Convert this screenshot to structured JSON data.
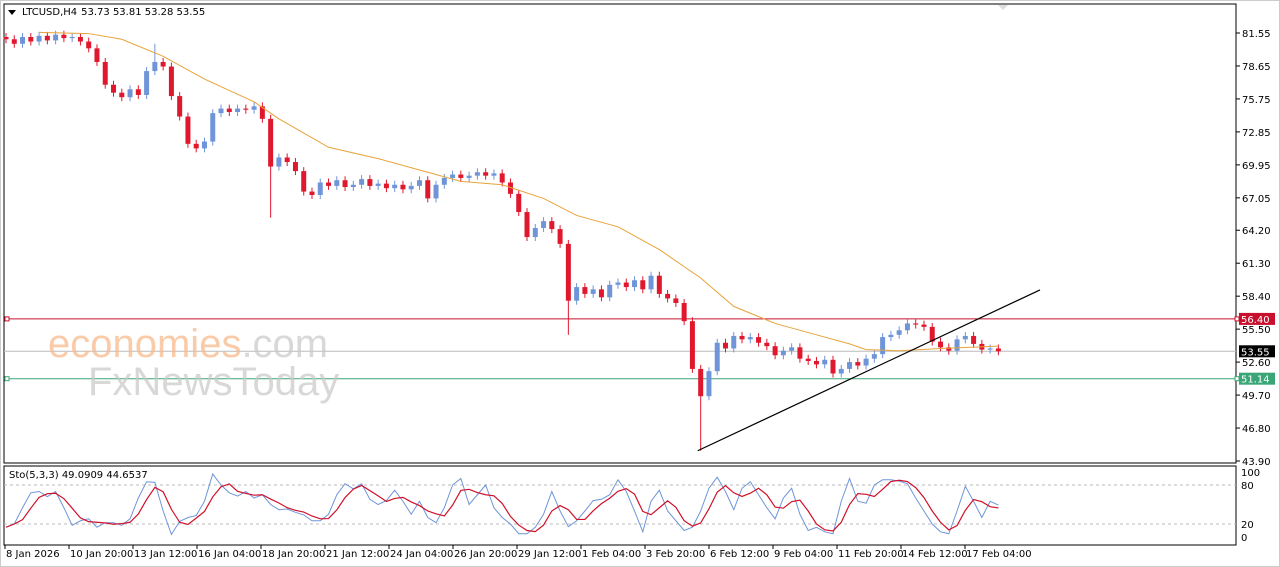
{
  "header": {
    "symbol": "LTCUSD,H4",
    "ohlc": "53.73 53.81 53.28 53.55"
  },
  "watermark": {
    "line1_main": "economies",
    "line1_suffix": ".com",
    "line2": "FxNewsToday"
  },
  "stochastic": {
    "label": "Sto(5,3,3) 49.0909 44.6537",
    "levels": [
      20,
      80
    ],
    "axis_labels": [
      "100",
      "80",
      "20",
      "0"
    ]
  },
  "colors": {
    "bull": "#6f95d8",
    "bear": "#e0182e",
    "ma": "#e8a33a",
    "resistance": "#c8102e",
    "support": "#3aa676",
    "current": "#000000",
    "stoch_k": "#6f95d8",
    "stoch_d": "#d0102a"
  },
  "chart_data": {
    "type": "candlestick",
    "price_axis": {
      "min": 43.9,
      "max": 81.55,
      "ticks": [
        "81.55",
        "78.65",
        "75.75",
        "72.85",
        "69.95",
        "67.05",
        "64.20",
        "61.30",
        "58.40",
        "55.50",
        "52.60",
        "49.70",
        "46.80",
        "43.90"
      ]
    },
    "time_labels": [
      "8 Jan 2026",
      "10 Jan 20:00",
      "13 Jan 12:00",
      "16 Jan 04:00",
      "18 Jan 20:00",
      "21 Jan 12:00",
      "24 Jan 04:00",
      "26 Jan 20:00",
      "29 Jan 12:00",
      "1 Feb 04:00",
      "3 Feb 20:00",
      "6 Feb 12:00",
      "9 Feb 04:00",
      "11 Feb 20:00",
      "14 Feb 12:00",
      "17 Feb 04:00"
    ],
    "closes": [
      81.0,
      80.6,
      81.2,
      80.8,
      81.3,
      80.9,
      81.4,
      81.1,
      81.2,
      80.8,
      80.2,
      79.0,
      77.0,
      76.3,
      75.9,
      76.6,
      76.1,
      78.2,
      79.0,
      78.6,
      76.0,
      74.2,
      71.8,
      71.4,
      72.0,
      74.5,
      74.9,
      74.6,
      74.9,
      74.8,
      75.1,
      74.0,
      69.8,
      70.6,
      70.2,
      69.4,
      67.6,
      67.3,
      68.4,
      68.1,
      68.6,
      68.0,
      68.2,
      68.7,
      68.1,
      68.3,
      67.9,
      68.2,
      67.8,
      68.1,
      68.6,
      67.0,
      68.2,
      68.8,
      69.1,
      68.8,
      69.0,
      69.3,
      69.0,
      69.2,
      68.4,
      67.4,
      65.8,
      63.6,
      64.4,
      65.0,
      64.3,
      63.0,
      58.0,
      59.2,
      58.6,
      59.0,
      58.3,
      59.4,
      59.6,
      59.2,
      59.8,
      59.0,
      60.2,
      58.6,
      58.2,
      57.8,
      56.2,
      52.0,
      49.6,
      51.8,
      54.3,
      53.8,
      54.9,
      54.6,
      54.8,
      54.3,
      54.0,
      53.2,
      53.6,
      53.9,
      52.9,
      52.7,
      52.4,
      52.8,
      51.6,
      52.0,
      52.6,
      52.3,
      52.9,
      53.3,
      54.8,
      55.0,
      55.4,
      56.0,
      55.9,
      55.7,
      54.4,
      53.9,
      53.6,
      54.6,
      54.9,
      54.2,
      53.7,
      53.8,
      53.55
    ],
    "wick_lows": {
      "32": 65.3,
      "68": 55.0,
      "84": 44.8
    },
    "wick_highs": {
      "18": 80.6
    },
    "moving_average": [
      [
        4,
        81.6
      ],
      [
        10,
        81.5
      ],
      [
        14,
        81.0
      ],
      [
        19,
        79.5
      ],
      [
        24,
        77.5
      ],
      [
        30,
        75.5
      ],
      [
        33,
        74.0
      ],
      [
        39,
        71.5
      ],
      [
        45,
        70.5
      ],
      [
        50,
        69.5
      ],
      [
        55,
        68.5
      ],
      [
        60,
        68.2
      ],
      [
        65,
        67.0
      ],
      [
        69,
        65.5
      ],
      [
        74,
        64.5
      ],
      [
        79,
        62.5
      ],
      [
        84,
        60.0
      ],
      [
        88,
        57.5
      ],
      [
        93,
        56.0
      ],
      [
        98,
        55.0
      ],
      [
        102,
        54.2
      ],
      [
        104,
        53.7
      ],
      [
        108,
        53.6
      ],
      [
        113,
        53.8
      ],
      [
        120,
        54.0
      ]
    ],
    "horizontal_lines": [
      {
        "price": 56.4,
        "label": "56.40",
        "kind": "resistance"
      },
      {
        "price": 53.55,
        "label": "53.55",
        "kind": "current"
      },
      {
        "price": 51.14,
        "label": "51.14",
        "kind": "support"
      }
    ],
    "trendline": {
      "from": {
        "bar": 84,
        "price": 44.8
      },
      "to_price": 58.95
    },
    "stoch_k": [
      15,
      20,
      45,
      68,
      70,
      62,
      70,
      45,
      18,
      25,
      28,
      15,
      22,
      22,
      18,
      28,
      60,
      85,
      84,
      40,
      4,
      24,
      30,
      33,
      55,
      97,
      80,
      68,
      63,
      70,
      60,
      65,
      50,
      42,
      43,
      38,
      34,
      25,
      25,
      35,
      65,
      82,
      74,
      82,
      58,
      50,
      56,
      72,
      55,
      35,
      55,
      30,
      22,
      45,
      80,
      90,
      50,
      65,
      80,
      45,
      30,
      20,
      5,
      5,
      15,
      35,
      70,
      40,
      16,
      25,
      40,
      56,
      58,
      65,
      88,
      70,
      40,
      8,
      55,
      72,
      40,
      25,
      10,
      15,
      40,
      75,
      92,
      70,
      42,
      75,
      85,
      65,
      45,
      28,
      60,
      75,
      35,
      10,
      15,
      8,
      5,
      55,
      90,
      55,
      52,
      80,
      88,
      88,
      86,
      82,
      60,
      40,
      20,
      8,
      5,
      40,
      78,
      55,
      30,
      55,
      49.09
    ]
  }
}
